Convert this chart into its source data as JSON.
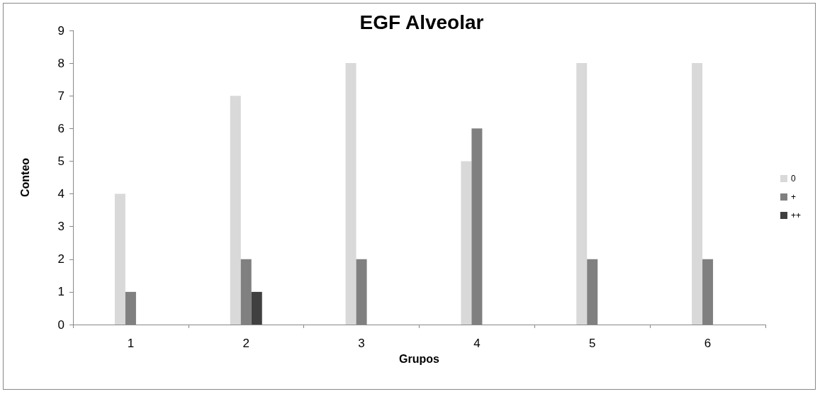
{
  "chart_data": {
    "type": "bar",
    "title": "EGF Alveolar",
    "xlabel": "Grupos",
    "ylabel": "Conteo",
    "categories": [
      "1",
      "2",
      "3",
      "4",
      "5",
      "6"
    ],
    "series": [
      {
        "name": "0",
        "color": "#d9d9d9",
        "values": [
          4,
          7,
          8,
          5,
          8,
          8
        ]
      },
      {
        "name": "+",
        "color": "#808080",
        "values": [
          1,
          2,
          2,
          6,
          2,
          2
        ]
      },
      {
        "name": "++",
        "color": "#404040",
        "values": [
          0,
          1,
          0,
          0,
          0,
          0
        ]
      }
    ],
    "ylim": [
      0,
      9
    ],
    "yticks": [
      0,
      1,
      2,
      3,
      4,
      5,
      6,
      7,
      8,
      9
    ],
    "grid": false,
    "legend": "right"
  }
}
